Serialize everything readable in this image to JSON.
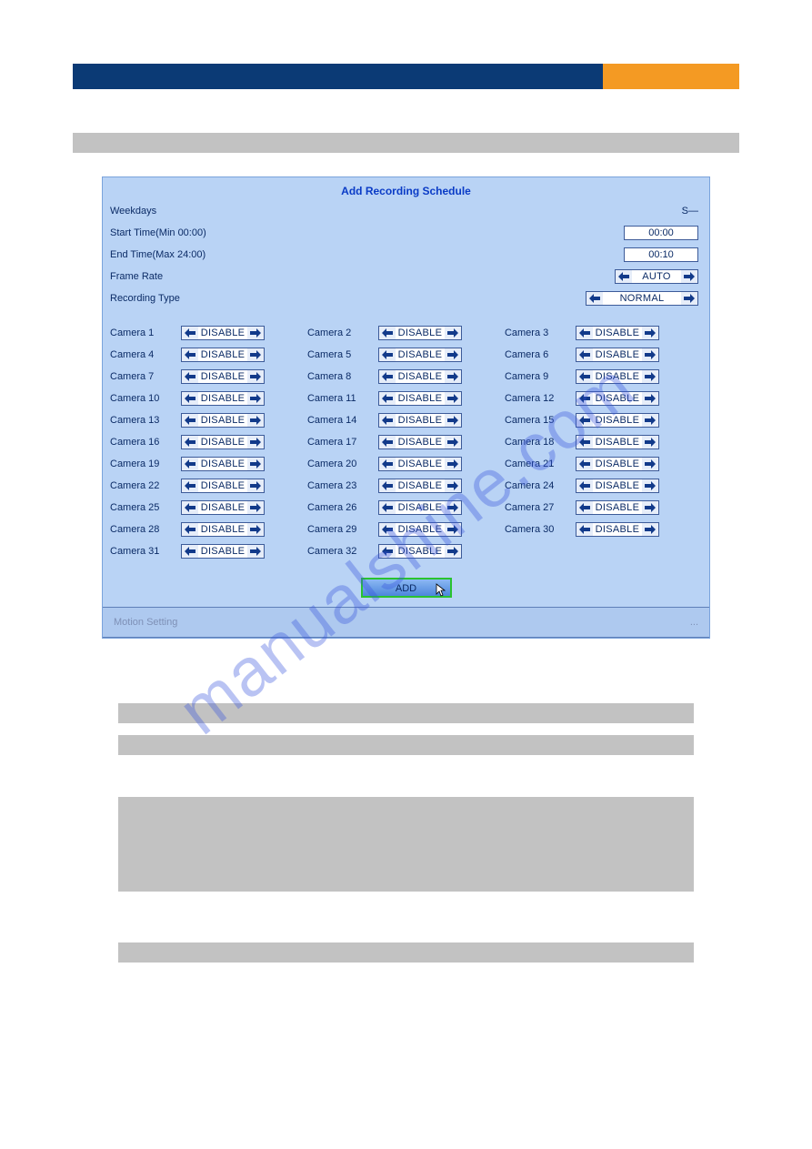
{
  "colors": {
    "topbar_left": "#0b3a75",
    "topbar_right": "#f49a23",
    "grey": "#c2c2c2",
    "dialog_bg": "#b9d3f5",
    "dialog_border": "#7aa3dc",
    "heading_text": "#0a3bc6",
    "label_text": "#0b2b66",
    "field_border": "#3d5b99",
    "arrow_bg": "#e6edf9",
    "add_border": "#29c32f",
    "add_bg_top": "#8bb8f3",
    "add_bg_bottom": "#4d86dc",
    "footer_text": "#7e90b6",
    "watermark": "rgba(54,84,220,0.35)"
  },
  "dialog": {
    "title": "Add Recording Schedule",
    "config": {
      "weekdays": {
        "label": "Weekdays",
        "value": "S—"
      },
      "start_time": {
        "label": "Start Time(Min 00:00)",
        "value": "00:00"
      },
      "end_time": {
        "label": "End Time(Max 24:00)",
        "value": "00:10"
      },
      "frame_rate": {
        "label": "Frame Rate",
        "value": "AUTO"
      },
      "recording_type": {
        "label": "Recording Type",
        "value": "NORMAL"
      }
    },
    "camera_default": "DISABLE",
    "cameras": [
      {
        "id": 1,
        "label": "Camera 1",
        "state": "DISABLE"
      },
      {
        "id": 2,
        "label": "Camera 2",
        "state": "DISABLE"
      },
      {
        "id": 3,
        "label": "Camera 3",
        "state": "DISABLE"
      },
      {
        "id": 4,
        "label": "Camera 4",
        "state": "DISABLE"
      },
      {
        "id": 5,
        "label": "Camera 5",
        "state": "DISABLE"
      },
      {
        "id": 6,
        "label": "Camera 6",
        "state": "DISABLE"
      },
      {
        "id": 7,
        "label": "Camera 7",
        "state": "DISABLE"
      },
      {
        "id": 8,
        "label": "Camera 8",
        "state": "DISABLE"
      },
      {
        "id": 9,
        "label": "Camera 9",
        "state": "DISABLE"
      },
      {
        "id": 10,
        "label": "Camera 10",
        "state": "DISABLE"
      },
      {
        "id": 11,
        "label": "Camera 11",
        "state": "DISABLE"
      },
      {
        "id": 12,
        "label": "Camera 12",
        "state": "DISABLE"
      },
      {
        "id": 13,
        "label": "Camera 13",
        "state": "DISABLE"
      },
      {
        "id": 14,
        "label": "Camera 14",
        "state": "DISABLE"
      },
      {
        "id": 15,
        "label": "Camera 15",
        "state": "DISABLE"
      },
      {
        "id": 16,
        "label": "Camera 16",
        "state": "DISABLE"
      },
      {
        "id": 17,
        "label": "Camera 17",
        "state": "DISABLE"
      },
      {
        "id": 18,
        "label": "Camera 18",
        "state": "DISABLE"
      },
      {
        "id": 19,
        "label": "Camera 19",
        "state": "DISABLE"
      },
      {
        "id": 20,
        "label": "Camera 20",
        "state": "DISABLE"
      },
      {
        "id": 21,
        "label": "Camera 21",
        "state": "DISABLE"
      },
      {
        "id": 22,
        "label": "Camera 22",
        "state": "DISABLE"
      },
      {
        "id": 23,
        "label": "Camera 23",
        "state": "DISABLE"
      },
      {
        "id": 24,
        "label": "Camera 24",
        "state": "DISABLE"
      },
      {
        "id": 25,
        "label": "Camera 25",
        "state": "DISABLE"
      },
      {
        "id": 26,
        "label": "Camera 26",
        "state": "DISABLE"
      },
      {
        "id": 27,
        "label": "Camera 27",
        "state": "DISABLE"
      },
      {
        "id": 28,
        "label": "Camera 28",
        "state": "DISABLE"
      },
      {
        "id": 29,
        "label": "Camera 29",
        "state": "DISABLE"
      },
      {
        "id": 30,
        "label": "Camera 30",
        "state": "DISABLE"
      },
      {
        "id": 31,
        "label": "Camera 31",
        "state": "DISABLE"
      },
      {
        "id": 32,
        "label": "Camera 32",
        "state": "DISABLE"
      }
    ],
    "add_button": "ADD",
    "footer": {
      "left": "Motion Setting",
      "right": "..."
    }
  },
  "watermark_text": "manualshine.com"
}
